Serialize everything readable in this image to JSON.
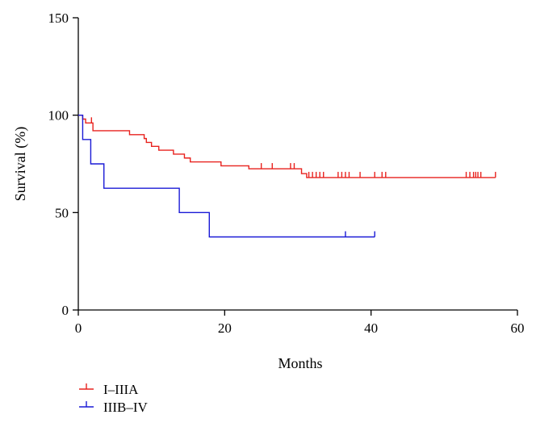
{
  "chart_data": {
    "type": "line",
    "subtype": "kaplan-meier",
    "title": "",
    "xlabel": "Months",
    "ylabel": "Survival (%)",
    "xlim": [
      0,
      60
    ],
    "ylim": [
      0,
      150
    ],
    "xticks": [
      "0",
      "20",
      "40",
      "60"
    ],
    "yticks": [
      "0",
      "50",
      "100",
      "150"
    ],
    "grid": false,
    "legend": "bottom-left",
    "series": [
      {
        "name": "I–IIIA",
        "color": "#e8221e",
        "steps": [
          [
            0,
            100
          ],
          [
            0.6,
            98
          ],
          [
            1.0,
            96
          ],
          [
            2.0,
            92
          ],
          [
            7.0,
            90
          ],
          [
            9.0,
            88
          ],
          [
            9.3,
            86
          ],
          [
            10.0,
            84
          ],
          [
            11.0,
            82
          ],
          [
            13.0,
            80
          ],
          [
            14.5,
            78
          ],
          [
            15.3,
            76
          ],
          [
            19.5,
            74
          ],
          [
            23.3,
            72.5
          ],
          [
            30.5,
            70
          ],
          [
            31.2,
            68
          ],
          [
            57.0,
            68
          ]
        ],
        "censored": [
          1.8,
          25.0,
          26.5,
          29.0,
          29.5,
          31.5,
          32.0,
          32.5,
          33.0,
          33.5,
          35.5,
          36.0,
          36.5,
          37.0,
          38.5,
          40.5,
          41.5,
          42.0,
          53.0,
          53.5,
          54.0,
          54.3,
          54.6,
          55.0,
          57.0
        ]
      },
      {
        "name": "IIIB–IV",
        "color": "#1a1ad6",
        "steps": [
          [
            0,
            100
          ],
          [
            0.6,
            87.5
          ],
          [
            1.7,
            75
          ],
          [
            3.5,
            62.5
          ],
          [
            13.8,
            50
          ],
          [
            17.9,
            37.5
          ],
          [
            40.5,
            37.5
          ]
        ],
        "censored": [
          36.5,
          40.5
        ]
      }
    ]
  }
}
